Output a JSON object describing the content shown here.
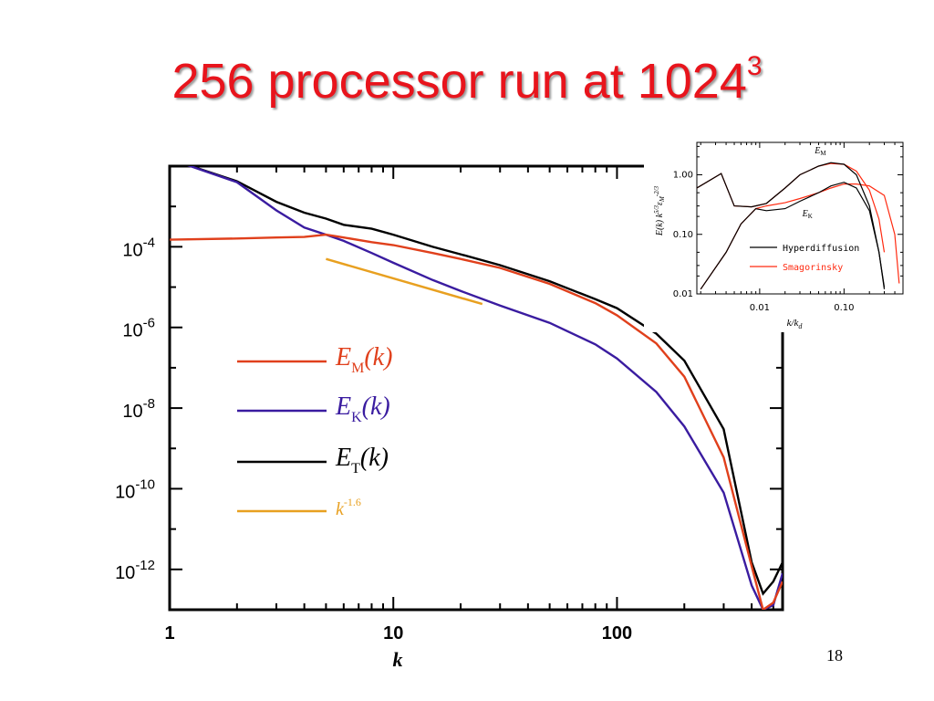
{
  "slide": {
    "title": "256 processor run at 1024",
    "title_superscript": "3",
    "page_number": "18"
  },
  "colors": {
    "title": "#e8141c",
    "E_M": "#e0401c",
    "E_K": "#3a1ca0",
    "E_T": "#000000",
    "k_power": "#e8a020",
    "inset_hyper": "#000000",
    "inset_smag": "#ff2a10"
  },
  "chart_data": [
    {
      "type": "line",
      "x_scale": "log",
      "y_scale": "log",
      "xlim": [
        1,
        550
      ],
      "ylim": [
        1e-13,
        0.01
      ],
      "xlabel": "k",
      "ylabel": "",
      "x_ticks": [
        {
          "value": 1,
          "label": "1"
        },
        {
          "value": 10,
          "label": "10"
        },
        {
          "value": 100,
          "label": "100"
        }
      ],
      "y_ticks": [
        {
          "value": 0.0001,
          "base": "10",
          "exp": "-4"
        },
        {
          "value": 1e-06,
          "base": "10",
          "exp": "-6"
        },
        {
          "value": 1e-08,
          "base": "10",
          "exp": "-8"
        },
        {
          "value": 1e-10,
          "base": "10",
          "exp": "-10"
        },
        {
          "value": 1e-12,
          "base": "10",
          "exp": "-12"
        }
      ],
      "legend_position": "center-left",
      "series": [
        {
          "name": "E_M(k)",
          "legend_main": "E",
          "legend_sub": "M",
          "legend_tail": "(k)",
          "color_key": "E_M",
          "x": [
            1,
            2,
            3,
            4,
            5,
            6,
            8,
            10,
            15,
            20,
            30,
            50,
            80,
            100,
            150,
            200,
            300,
            400,
            450,
            500,
            550
          ],
          "y": [
            0.00015,
            0.00016,
            0.00017,
            0.000175,
            0.0002,
            0.00017,
            0.00013,
            0.00011,
            7e-05,
            5e-05,
            3e-05,
            1.2e-05,
            4e-06,
            2e-06,
            4e-07,
            6e-08,
            6e-10,
            1.2e-12,
            1e-13,
            1.5e-13,
            5e-13
          ]
        },
        {
          "name": "E_K(k)",
          "legend_main": "E",
          "legend_sub": "K",
          "legend_tail": "(k)",
          "color_key": "E_K",
          "x": [
            1,
            2,
            3,
            4,
            5,
            6,
            8,
            10,
            15,
            20,
            30,
            50,
            80,
            100,
            150,
            200,
            300,
            400,
            450,
            500,
            550
          ],
          "y": [
            0.015,
            0.004,
            0.0008,
            0.0003,
            0.0002,
            0.00014,
            7e-05,
            4e-05,
            1.5e-05,
            8e-06,
            3.5e-06,
            1.3e-06,
            3.8e-07,
            1.7e-07,
            2.5e-08,
            3.5e-09,
            8e-11,
            4e-13,
            1e-13,
            1.3e-13,
            8e-13
          ]
        },
        {
          "name": "E_T(k)",
          "legend_main": "E",
          "legend_sub": "T",
          "legend_tail": "(k)",
          "color_key": "E_T",
          "x": [
            1,
            2,
            3,
            4,
            5,
            6,
            8,
            10,
            15,
            20,
            30,
            50,
            80,
            100,
            150,
            200,
            300,
            400,
            450,
            500,
            550
          ],
          "y": [
            0.015,
            0.0042,
            0.0013,
            0.0007,
            0.0005,
            0.00035,
            0.00028,
            0.0002,
            0.0001,
            6.5e-05,
            3.5e-05,
            1.4e-05,
            5e-06,
            3e-06,
            7e-07,
            1.5e-07,
            3e-09,
            1.5e-12,
            2.5e-13,
            5e-13,
            1.5e-12
          ]
        },
        {
          "name": "k^-1.6",
          "legend_main": "k",
          "legend_sup": "-1.6",
          "color_key": "k_power",
          "x": [
            5,
            25
          ],
          "y": [
            5e-05,
            3.8e-06
          ]
        }
      ]
    },
    {
      "type": "line",
      "x_scale": "log",
      "y_scale": "log",
      "xlim": [
        0.0018,
        0.5
      ],
      "ylim": [
        0.01,
        3.5
      ],
      "xlabel": "k/k",
      "xlabel_sub": "d",
      "ylabel": "E(k) k",
      "ylabel_sup": "5/3",
      "ylabel_rest": "ε",
      "ylabel_rest_sub": "M",
      "ylabel_rest_sup": "-2/3",
      "x_ticks": [
        {
          "value": 0.01,
          "label": "0.01"
        },
        {
          "value": 0.1,
          "label": "0.10"
        }
      ],
      "y_ticks": [
        {
          "value": 1,
          "label": "1.00"
        },
        {
          "value": 0.1,
          "label": "0.10"
        },
        {
          "value": 0.01,
          "label": "0.01"
        }
      ],
      "legend_position": "lower-right",
      "annotations": [
        {
          "text": "E",
          "sub": "M",
          "x": 0.045,
          "y": 2.3
        },
        {
          "text": "E",
          "sub": "K",
          "x": 0.032,
          "y": 0.2
        }
      ],
      "series": [
        {
          "name": "Hyperdiffusion",
          "color_key": "inset_hyper",
          "curves": [
            {
              "x": [
                0.0018,
                0.0035,
                0.005,
                0.008,
                0.012,
                0.02,
                0.03,
                0.05,
                0.07,
                0.1,
                0.14,
                0.2,
                0.26,
                0.3
              ],
              "y": [
                0.6,
                1.05,
                0.3,
                0.29,
                0.33,
                0.6,
                1.0,
                1.4,
                1.6,
                1.5,
                1.0,
                0.3,
                0.05,
                0.012
              ]
            },
            {
              "x": [
                0.002,
                0.004,
                0.006,
                0.009,
                0.012,
                0.02,
                0.03,
                0.05,
                0.07,
                0.1,
                0.14,
                0.2,
                0.26,
                0.3
              ],
              "y": [
                0.012,
                0.05,
                0.15,
                0.27,
                0.25,
                0.27,
                0.36,
                0.5,
                0.65,
                0.75,
                0.6,
                0.25,
                0.05,
                0.013
              ]
            }
          ]
        },
        {
          "name": "Smagorinsky",
          "color_key": "inset_smag",
          "curves": [
            {
              "x": [
                0.0018,
                0.0035,
                0.005,
                0.008,
                0.012,
                0.02,
                0.03,
                0.05,
                0.07,
                0.1,
                0.14,
                0.2,
                0.26,
                0.3
              ],
              "y": [
                0.6,
                1.05,
                0.3,
                0.29,
                0.33,
                0.6,
                1.0,
                1.4,
                1.55,
                1.5,
                1.15,
                0.55,
                0.18,
                0.05
              ]
            },
            {
              "x": [
                0.002,
                0.004,
                0.006,
                0.009,
                0.012,
                0.02,
                0.03,
                0.05,
                0.07,
                0.1,
                0.14,
                0.2,
                0.3,
                0.4,
                0.45
              ],
              "y": [
                0.012,
                0.05,
                0.15,
                0.27,
                0.3,
                0.34,
                0.4,
                0.5,
                0.6,
                0.7,
                0.7,
                0.65,
                0.45,
                0.1,
                0.015
              ]
            }
          ]
        }
      ]
    }
  ]
}
